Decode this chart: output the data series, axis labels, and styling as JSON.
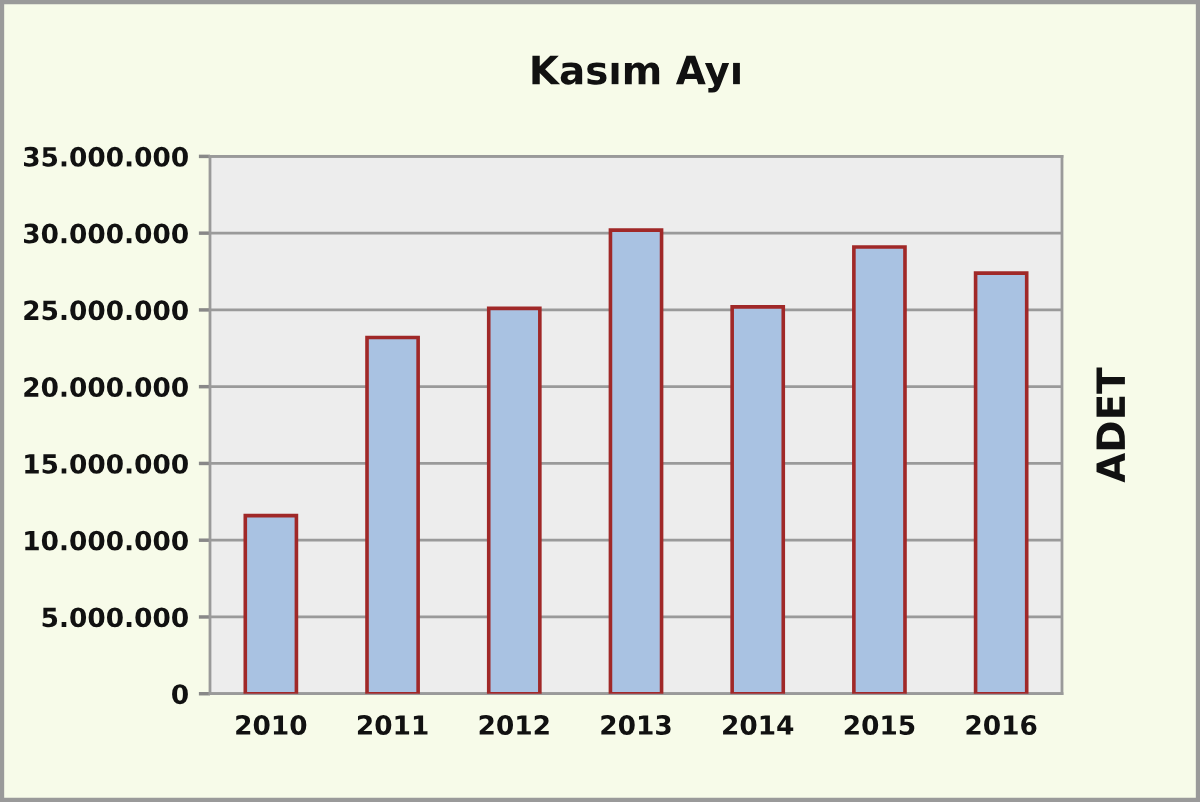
{
  "chart_data": {
    "type": "bar",
    "title": "Kasım Ayı",
    "ylabel": "ADET",
    "categories": [
      "2010",
      "2011",
      "2012",
      "2013",
      "2014",
      "2015",
      "2016"
    ],
    "values": [
      11600000,
      23200000,
      25100000,
      30200000,
      25200000,
      29100000,
      27400000
    ],
    "color": "#a9c2e2",
    "ylim": [
      0,
      35000000
    ],
    "yticks": [
      0,
      {
        "value": 5000000,
        "label": "5.000.000"
      },
      {
        "value": 10000000,
        "label": "10.000.000"
      },
      {
        "value": 15000000,
        "label": "15.000.000"
      },
      {
        "value": 20000000,
        "label": "20.000.000"
      },
      {
        "value": 25000000,
        "label": "25.000.000"
      },
      {
        "value": 30000000,
        "label": "30.000.000"
      },
      {
        "value": 35000000,
        "label": "35.000.000"
      }
    ],
    "grid": "y"
  }
}
